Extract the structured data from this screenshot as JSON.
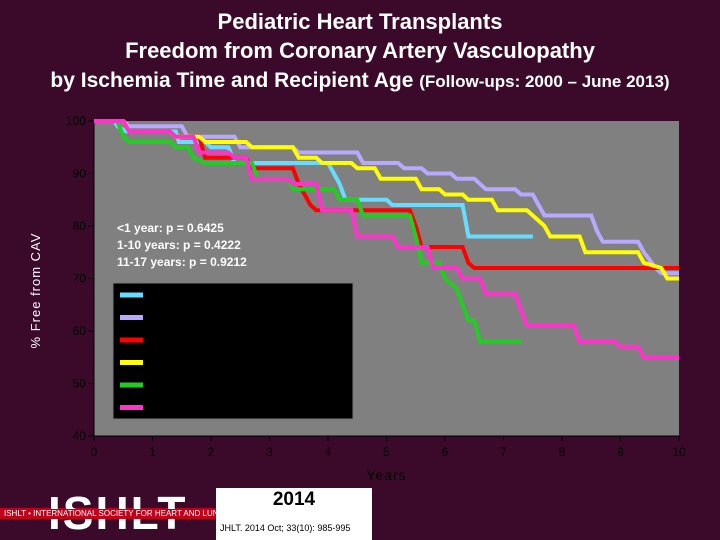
{
  "header": {
    "title": "Pediatric Heart Transplants",
    "subtitle1": "Freedom from Coronary Artery Vasculopathy",
    "subtitle2_main": "by Ischemia Time and Recipient Age",
    "subtitle2_small": "(Follow-ups: 2000 – June 2013)"
  },
  "footer": {
    "logo_text": "ISHLT",
    "logo_tagline": "ISHLT • INTERNATIONAL SOCIETY FOR HEART AND LUNG TRANSPLANTATION",
    "year": "2014",
    "citation": "JHLT. 2014 Oct; 33(10): 985-995"
  },
  "colors": {
    "background": "#3b0a2a",
    "plot_background": "#808080",
    "legend_background": "#000000"
  },
  "chart_data": {
    "type": "line",
    "xlabel": "Years",
    "ylabel": "% Free from CAV",
    "xlim": [
      0,
      10
    ],
    "ylim": [
      40,
      100
    ],
    "xticks": [
      0,
      1,
      2,
      3,
      4,
      5,
      6,
      7,
      8,
      9,
      10
    ],
    "yticks": [
      40,
      50,
      60,
      70,
      80,
      90,
      100
    ],
    "grid": false,
    "legend_position": "center-left",
    "annotation": [
      "<1 year: p = 0.6425",
      "1-10 years:   p = 0.4222",
      "11-17 years: p = 0.9212"
    ],
    "series": [
      {
        "color": "#66ddff",
        "points": [
          [
            0,
            100
          ],
          [
            0.35,
            100
          ],
          [
            0.4,
            99
          ],
          [
            0.55,
            98
          ],
          [
            1.4,
            98
          ],
          [
            1.45,
            96
          ],
          [
            1.9,
            96
          ],
          [
            2,
            95
          ],
          [
            2.3,
            95
          ],
          [
            2.4,
            92
          ],
          [
            4,
            92
          ],
          [
            4.1,
            90
          ],
          [
            4.2,
            88
          ],
          [
            4.3,
            85
          ],
          [
            5,
            85
          ],
          [
            5.1,
            84
          ],
          [
            6.3,
            84
          ],
          [
            6.4,
            78
          ],
          [
            7.5,
            78
          ]
        ]
      },
      {
        "color": "#b8a8ff",
        "points": [
          [
            0,
            100
          ],
          [
            0.5,
            100
          ],
          [
            0.6,
            99
          ],
          [
            1.5,
            99
          ],
          [
            1.6,
            97
          ],
          [
            2.4,
            97
          ],
          [
            2.5,
            95
          ],
          [
            3.4,
            95
          ],
          [
            3.5,
            94
          ],
          [
            4.5,
            94
          ],
          [
            4.6,
            92
          ],
          [
            5.2,
            92
          ],
          [
            5.3,
            91
          ],
          [
            5.6,
            91
          ],
          [
            5.7,
            90
          ],
          [
            6.1,
            90
          ],
          [
            6.2,
            89
          ],
          [
            6.5,
            89
          ],
          [
            6.6,
            88
          ],
          [
            6.7,
            87
          ],
          [
            7.2,
            87
          ],
          [
            7.3,
            86
          ],
          [
            7.5,
            86
          ],
          [
            7.6,
            84
          ],
          [
            7.7,
            82
          ],
          [
            8.5,
            82
          ],
          [
            8.6,
            79
          ],
          [
            8.7,
            77
          ],
          [
            9.3,
            77
          ],
          [
            9.4,
            75
          ],
          [
            9.6,
            72
          ],
          [
            9.7,
            71
          ],
          [
            10,
            71
          ]
        ]
      },
      {
        "color": "#ff0000",
        "points": [
          [
            0,
            100
          ],
          [
            0.5,
            100
          ],
          [
            0.6,
            98
          ],
          [
            1.3,
            98
          ],
          [
            1.4,
            97
          ],
          [
            1.8,
            97
          ],
          [
            1.9,
            93
          ],
          [
            2.6,
            93
          ],
          [
            2.7,
            91
          ],
          [
            3.4,
            91
          ],
          [
            3.5,
            88
          ],
          [
            3.6,
            86
          ],
          [
            3.7,
            84
          ],
          [
            3.8,
            83
          ],
          [
            5.4,
            83
          ],
          [
            5.5,
            80
          ],
          [
            5.6,
            76
          ],
          [
            6.3,
            76
          ],
          [
            6.4,
            73
          ],
          [
            6.5,
            72
          ],
          [
            10,
            72
          ]
        ]
      },
      {
        "color": "#ffff00",
        "points": [
          [
            0,
            100
          ],
          [
            0.5,
            100
          ],
          [
            0.6,
            98
          ],
          [
            1.3,
            98
          ],
          [
            1.4,
            97
          ],
          [
            1.8,
            97
          ],
          [
            1.9,
            96
          ],
          [
            2.6,
            96
          ],
          [
            2.7,
            95
          ],
          [
            3.4,
            95
          ],
          [
            3.5,
            93
          ],
          [
            3.8,
            93
          ],
          [
            3.9,
            92
          ],
          [
            4.4,
            92
          ],
          [
            4.5,
            91
          ],
          [
            4.8,
            91
          ],
          [
            4.9,
            89
          ],
          [
            5.5,
            89
          ],
          [
            5.6,
            87
          ],
          [
            5.9,
            87
          ],
          [
            6.0,
            86
          ],
          [
            6.3,
            86
          ],
          [
            6.4,
            85
          ],
          [
            6.8,
            85
          ],
          [
            6.9,
            83
          ],
          [
            7.4,
            83
          ],
          [
            7.5,
            82
          ],
          [
            7.7,
            80
          ],
          [
            7.8,
            78
          ],
          [
            8.3,
            78
          ],
          [
            8.4,
            75
          ],
          [
            9.3,
            75
          ],
          [
            9.4,
            73
          ],
          [
            9.7,
            72
          ],
          [
            9.8,
            70
          ],
          [
            10,
            70
          ]
        ]
      },
      {
        "color": "#22cc22",
        "points": [
          [
            0,
            100
          ],
          [
            0.4,
            100
          ],
          [
            0.5,
            97
          ],
          [
            0.6,
            96
          ],
          [
            1.3,
            96
          ],
          [
            1.4,
            95
          ],
          [
            1.6,
            95
          ],
          [
            1.7,
            93
          ],
          [
            1.9,
            92
          ],
          [
            2.7,
            92
          ],
          [
            2.8,
            89
          ],
          [
            3.3,
            89
          ],
          [
            3.4,
            87
          ],
          [
            4.1,
            87
          ],
          [
            4.2,
            85
          ],
          [
            4.5,
            85
          ],
          [
            4.6,
            82
          ],
          [
            5.4,
            82
          ],
          [
            5.5,
            78
          ],
          [
            5.6,
            73
          ],
          [
            5.9,
            73
          ],
          [
            6.0,
            70
          ],
          [
            6.2,
            68
          ],
          [
            6.4,
            62
          ],
          [
            6.5,
            62
          ],
          [
            6.6,
            58
          ],
          [
            7.3,
            58
          ]
        ]
      },
      {
        "color": "#ff33cc",
        "points": [
          [
            0,
            100
          ],
          [
            0.5,
            100
          ],
          [
            0.6,
            98
          ],
          [
            1.3,
            98
          ],
          [
            1.4,
            97
          ],
          [
            1.7,
            97
          ],
          [
            1.8,
            94
          ],
          [
            2.3,
            94
          ],
          [
            2.4,
            93
          ],
          [
            2.6,
            93
          ],
          [
            2.7,
            89
          ],
          [
            3.3,
            89
          ],
          [
            3.4,
            88
          ],
          [
            3.8,
            88
          ],
          [
            3.9,
            83
          ],
          [
            4.4,
            83
          ],
          [
            4.5,
            78
          ],
          [
            5.1,
            78
          ],
          [
            5.2,
            76
          ],
          [
            5.7,
            76
          ],
          [
            5.8,
            72
          ],
          [
            6.2,
            72
          ],
          [
            6.3,
            70
          ],
          [
            6.6,
            70
          ],
          [
            6.7,
            67
          ],
          [
            7.2,
            67
          ],
          [
            7.3,
            64
          ],
          [
            7.4,
            61
          ],
          [
            8.2,
            61
          ],
          [
            8.3,
            58
          ],
          [
            8.9,
            58
          ],
          [
            9.0,
            57
          ],
          [
            9.3,
            57
          ],
          [
            9.4,
            55
          ],
          [
            10,
            55
          ]
        ]
      }
    ]
  }
}
